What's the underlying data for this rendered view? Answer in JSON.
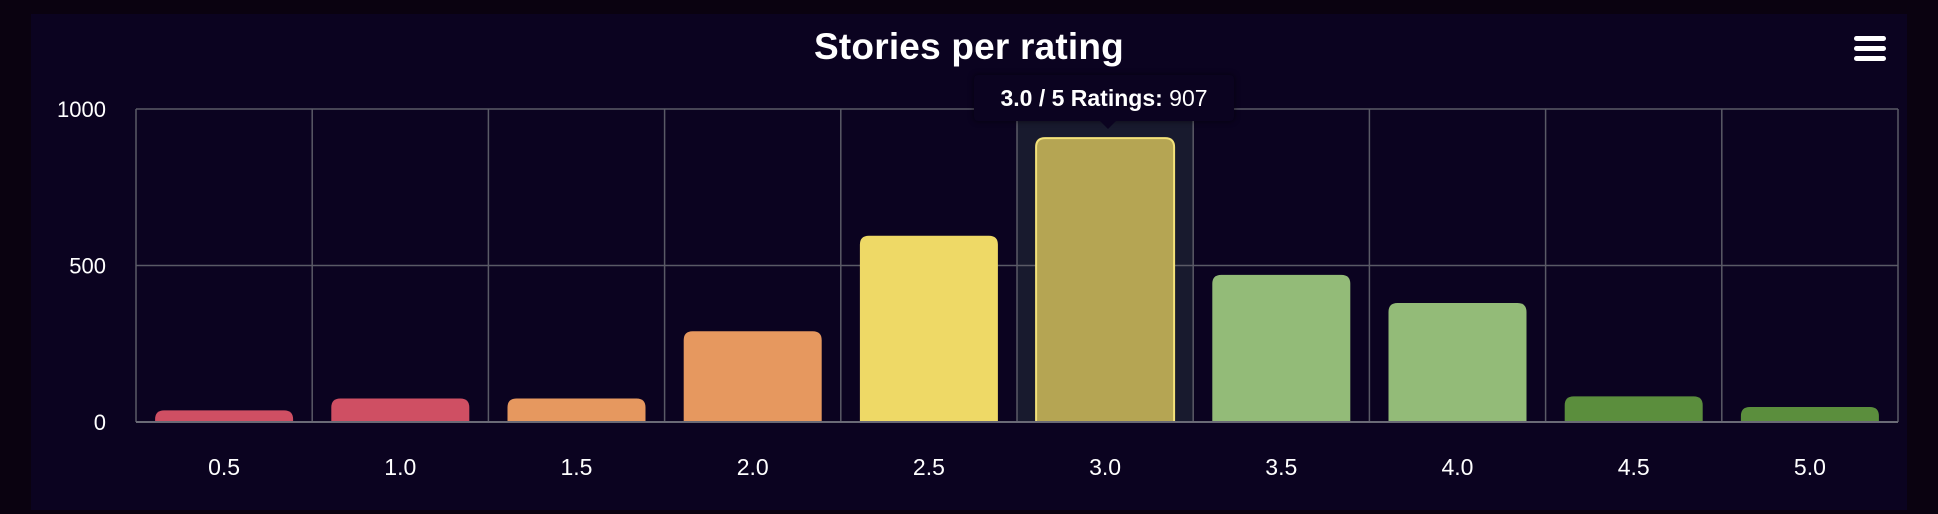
{
  "menu": {
    "icon": "hamburger-menu-icon"
  },
  "chart_data": {
    "type": "bar",
    "title": "Stories per rating",
    "xlabel": "",
    "ylabel": "",
    "categories": [
      "0.5",
      "1.0",
      "1.5",
      "2.0",
      "2.5",
      "3.0",
      "3.5",
      "4.0",
      "4.5",
      "5.0"
    ],
    "values": [
      37,
      75,
      75,
      290,
      595,
      907,
      470,
      380,
      82,
      48
    ],
    "colors": [
      "#cf4f63",
      "#cf4f63",
      "#e6985f",
      "#e6985f",
      "#eed966",
      "#b5a553",
      "#93bb78",
      "#93bb78",
      "#5b8e3d",
      "#5b8e3d"
    ],
    "ylim": [
      0,
      1000
    ],
    "yticks": [
      "0",
      "500",
      "1000"
    ],
    "grid": true,
    "legend": "none",
    "highlighted_index": 5,
    "tooltip": {
      "label": "3.0 / 5 Ratings:",
      "value": "907"
    }
  }
}
